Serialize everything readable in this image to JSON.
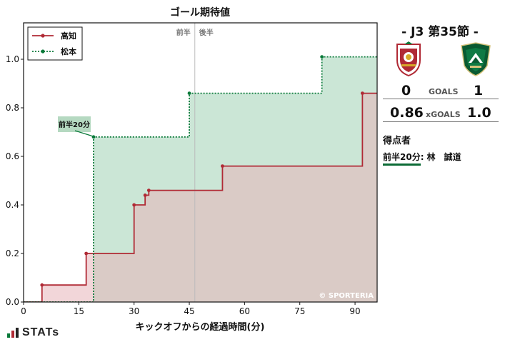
{
  "chart_data": {
    "type": "line",
    "step": true,
    "title": "ゴール期待値",
    "xlabel": "キックオフからの経過時間(分)",
    "ylabel": "",
    "xlim": [
      0,
      96
    ],
    "ylim": [
      0,
      1.15
    ],
    "xticks": [
      0,
      15,
      30,
      45,
      60,
      75,
      90
    ],
    "yticks": [
      0.0,
      0.2,
      0.4,
      0.6,
      0.8,
      1.0
    ],
    "halftime_marker": 46.5,
    "halftime_labels": [
      "前半",
      "後半"
    ],
    "legend_position": "top-left",
    "series": [
      {
        "name": "高知",
        "color": "#b02a35",
        "fill": "#e8b5ba",
        "linestyle": "solid",
        "points": [
          [
            5,
            0.07
          ],
          [
            17,
            0.2
          ],
          [
            30,
            0.4
          ],
          [
            33,
            0.44
          ],
          [
            34,
            0.46
          ],
          [
            54,
            0.56
          ],
          [
            92,
            0.86
          ]
        ]
      },
      {
        "name": "松本",
        "color": "#0a7a3a",
        "fill": "#8cc7a3",
        "linestyle": "dotted",
        "points": [
          [
            19,
            0.68
          ],
          [
            45,
            0.86
          ],
          [
            81,
            1.01
          ],
          [
            96,
            1.01
          ]
        ]
      }
    ],
    "annotations": [
      {
        "text": "前半20分",
        "x": 19,
        "y": 0.68
      }
    ],
    "watermark": "© SPORTERIA"
  },
  "match": {
    "title": "- J3 第35節 -",
    "home_team": "高知",
    "away_team": "松本",
    "goals_label": "GOALS",
    "home_goals": "0",
    "away_goals": "1",
    "xg_label": "xGOALS",
    "home_xg": "0.86",
    "away_xg": "1.0",
    "scorers_label": "得点者",
    "scorer_time": "前半20分",
    "scorer_name": ": 林　誠道",
    "home_crest_color": "#b02a35",
    "away_crest_color": "#0a5a32"
  },
  "brand": {
    "name": "STATs"
  }
}
